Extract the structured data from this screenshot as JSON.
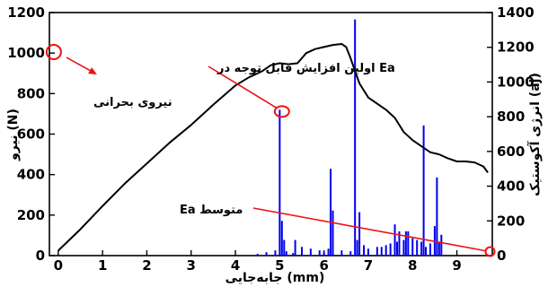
{
  "chart_data": {
    "type": "line",
    "xlabel": "جابه‌جایی (mm)",
    "ylabel": "نیرو (N)",
    "y2label": "انرژی آکوستیک (aj)",
    "xlim": [
      -0.2,
      9.8
    ],
    "ylim": [
      0,
      1200
    ],
    "y2lim": [
      0,
      1400
    ],
    "x_ticks": [
      0,
      1,
      2,
      3,
      4,
      5,
      6,
      7,
      8,
      9
    ],
    "y_ticks": [
      0,
      200,
      400,
      600,
      800,
      1000,
      1200
    ],
    "y2_ticks": [
      0,
      200,
      400,
      600,
      800,
      1000,
      1200,
      1400
    ],
    "grid": false,
    "force_color": "#000000",
    "energy_color": "#0000ee",
    "annotation_color": "#ee1111",
    "series": [
      {
        "axis": "left",
        "x": [
          0,
          0.5,
          1,
          1.5,
          2,
          2.5,
          3,
          3.5,
          4,
          4.3,
          4.6,
          4.8,
          5,
          5.2,
          5.4,
          5.6,
          5.8,
          6,
          6.2,
          6.4,
          6.5,
          6.6,
          6.8,
          7,
          7.2,
          7.4,
          7.6,
          7.8,
          8,
          8.2,
          8.4,
          8.6,
          8.8,
          9,
          9.2,
          9.4,
          9.6,
          9.7
        ],
        "y": [
          25,
          130,
          245,
          355,
          455,
          555,
          645,
          745,
          840,
          880,
          910,
          940,
          950,
          945,
          950,
          1000,
          1020,
          1030,
          1040,
          1045,
          1030,
          975,
          850,
          780,
          750,
          720,
          680,
          610,
          570,
          540,
          510,
          500,
          480,
          465,
          465,
          460,
          440,
          410
        ]
      },
      {
        "axis": "right",
        "type": "spikes",
        "x": [
          4.5,
          4.7,
          4.9,
          5.0,
          5.05,
          5.1,
          5.15,
          5.3,
          5.35,
          5.5,
          5.7,
          5.9,
          6.0,
          6.1,
          6.15,
          6.2,
          6.4,
          6.6,
          6.7,
          6.75,
          6.8,
          6.9,
          7.0,
          7.2,
          7.3,
          7.4,
          7.5,
          7.6,
          7.65,
          7.7,
          7.8,
          7.85,
          7.9,
          8.0,
          8.1,
          8.2,
          8.25,
          8.3,
          8.4,
          8.5,
          8.55,
          8.6,
          8.65
        ],
        "y": [
          10,
          20,
          30,
          840,
          200,
          90,
          25,
          15,
          90,
          50,
          40,
          30,
          20,
          40,
          500,
          260,
          30,
          25,
          1360,
          90,
          250,
          60,
          40,
          50,
          50,
          60,
          70,
          180,
          80,
          140,
          90,
          140,
          140,
          100,
          90,
          80,
          750,
          50,
          70,
          170,
          450,
          80,
          120
        ]
      }
    ],
    "annotations": [
      "اولین افزایش قابل توجه در Ea",
      "نیروی بحرانی",
      "Ea متوسط"
    ]
  }
}
